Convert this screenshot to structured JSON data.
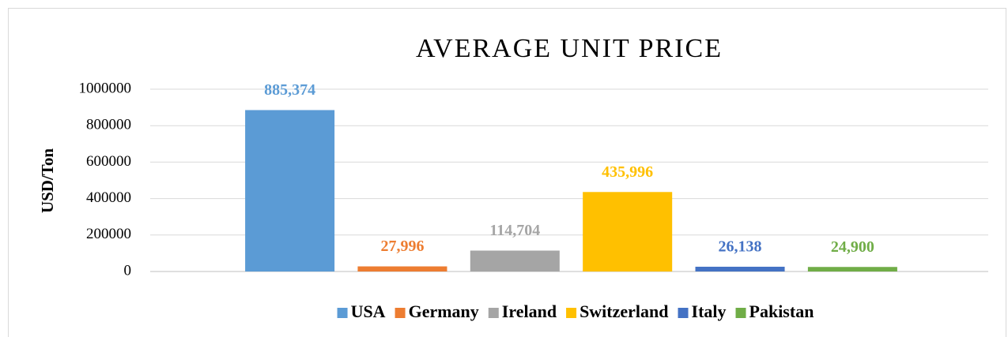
{
  "chart_data": {
    "type": "bar",
    "title": "AVERAGE UNIT PRICE",
    "y_label": "USD/Ton",
    "categories": [
      null
    ],
    "series": [
      {
        "name": "USA",
        "color": "#5b9bd5",
        "values": [
          885374
        ],
        "value_labels": [
          "885,374"
        ]
      },
      {
        "name": "Germany",
        "color": "#ed7d31",
        "values": [
          27996
        ],
        "value_labels": [
          "27,996"
        ]
      },
      {
        "name": "Ireland",
        "color": "#a5a5a5",
        "values": [
          114704
        ],
        "value_labels": [
          "114,704"
        ]
      },
      {
        "name": "Switzerland",
        "color": "#ffc000",
        "values": [
          435996
        ],
        "value_labels": [
          "435,996"
        ]
      },
      {
        "name": "Italy",
        "color": "#4472c4",
        "values": [
          26138
        ],
        "value_labels": [
          "26,138"
        ]
      },
      {
        "name": "Pakistan",
        "color": "#70ad47",
        "values": [
          24900
        ],
        "value_labels": [
          "24,900"
        ]
      }
    ],
    "ylim": [
      0,
      1000000
    ],
    "yticks": [
      0,
      200000,
      400000,
      600000,
      800000,
      1000000
    ],
    "grid": true,
    "legend": "bottom"
  }
}
